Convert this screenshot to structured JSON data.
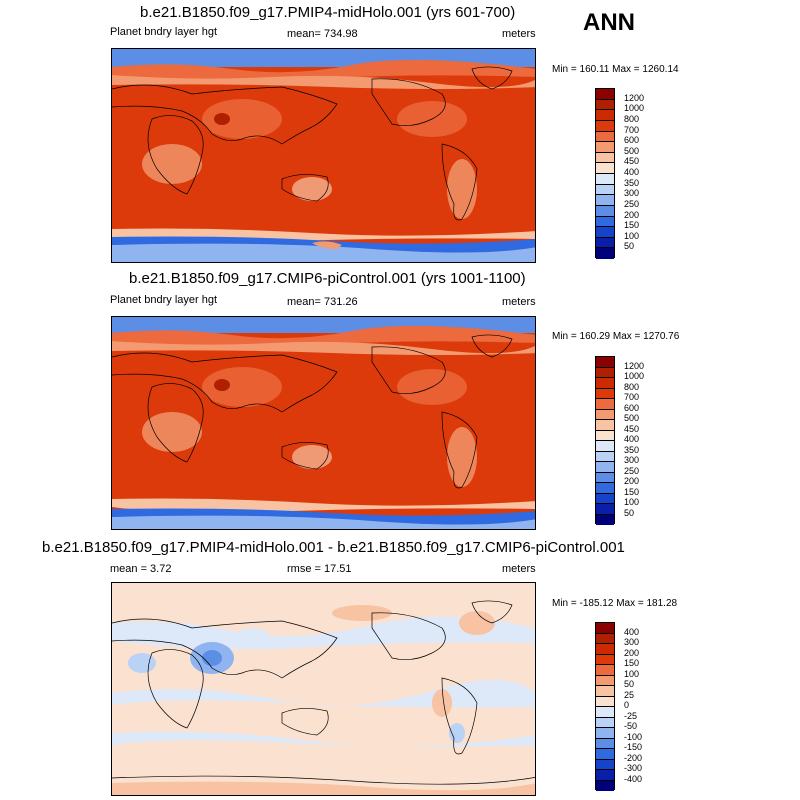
{
  "season": "ANN",
  "panels": [
    {
      "title": "b.e21.B1850.f09_g17.PMIP4-midHolo.001 (yrs 601-700)",
      "left_label": "Planet bndry layer hgt",
      "mid_label": "mean= 734.98",
      "right_label": "meters",
      "minmax": "Min = 160.11 Max = 1260.14"
    },
    {
      "title": "b.e21.B1850.f09_g17.CMIP6-piControl.001 (yrs 1001-1100)",
      "left_label": "Planet bndry layer hgt",
      "mid_label": "mean= 731.26",
      "right_label": "meters",
      "minmax": "Min = 160.29 Max = 1270.76"
    },
    {
      "title": "b.e21.B1850.f09_g17.PMIP4-midHolo.001 - b.e21.B1850.f09_g17.CMIP6-piControl.001",
      "left_label": "mean =   3.72",
      "mid_label": "rmse =  17.51",
      "right_label": "meters",
      "minmax": "Min = -185.12 Max = 181.28"
    }
  ],
  "chart_data": [
    {
      "type": "heatmap",
      "title": "b.e21.B1850.f09_g17.PMIP4-midHolo.001 (yrs 601-700)",
      "variable": "Planet bndry layer hgt",
      "units": "meters",
      "mean": 734.98,
      "min": 160.11,
      "max": 1260.14,
      "colorbar": {
        "levels": [
          "1200",
          "1000",
          "800",
          "700",
          "600",
          "500",
          "450",
          "400",
          "350",
          "300",
          "250",
          "200",
          "150",
          "100",
          "50"
        ],
        "colors": [
          "#8b0000",
          "#b01f00",
          "#cc2a00",
          "#dd3a0b",
          "#ec6a3d",
          "#f39a70",
          "#f7c3a3",
          "#fbe1cf",
          "#dde8f9",
          "#bad2f6",
          "#8fb4ef",
          "#5c8ee6",
          "#2f6ae0",
          "#1643cc",
          "#0a1fa8",
          "#00007a"
        ]
      }
    },
    {
      "type": "heatmap",
      "title": "b.e21.B1850.f09_g17.CMIP6-piControl.001 (yrs 1001-1100)",
      "variable": "Planet bndry layer hgt",
      "units": "meters",
      "mean": 731.26,
      "min": 160.29,
      "max": 1270.76,
      "colorbar": {
        "levels": [
          "1200",
          "1000",
          "800",
          "700",
          "600",
          "500",
          "450",
          "400",
          "350",
          "300",
          "250",
          "200",
          "150",
          "100",
          "50"
        ],
        "colors": [
          "#8b0000",
          "#b01f00",
          "#cc2a00",
          "#dd3a0b",
          "#ec6a3d",
          "#f39a70",
          "#f7c3a3",
          "#fbe1cf",
          "#dde8f9",
          "#bad2f6",
          "#8fb4ef",
          "#5c8ee6",
          "#2f6ae0",
          "#1643cc",
          "#0a1fa8",
          "#00007a"
        ]
      }
    },
    {
      "type": "heatmap",
      "title": "b.e21.B1850.f09_g17.PMIP4-midHolo.001 - b.e21.B1850.f09_g17.CMIP6-piControl.001",
      "units": "meters",
      "mean": 3.72,
      "rmse": 17.51,
      "min": -185.12,
      "max": 181.28,
      "colorbar": {
        "levels": [
          "400",
          "300",
          "200",
          "150",
          "100",
          "50",
          "25",
          "0",
          "-25",
          "-50",
          "-100",
          "-150",
          "-200",
          "-300",
          "-400"
        ],
        "colors": [
          "#8b0000",
          "#b01f00",
          "#cc2a00",
          "#dd3a0b",
          "#ec6a3d",
          "#f39a70",
          "#f7c3a3",
          "#fbe1cf",
          "#dde8f9",
          "#bad2f6",
          "#8fb4ef",
          "#5c8ee6",
          "#2f6ae0",
          "#1643cc",
          "#0a1fa8",
          "#00007a"
        ]
      }
    }
  ]
}
